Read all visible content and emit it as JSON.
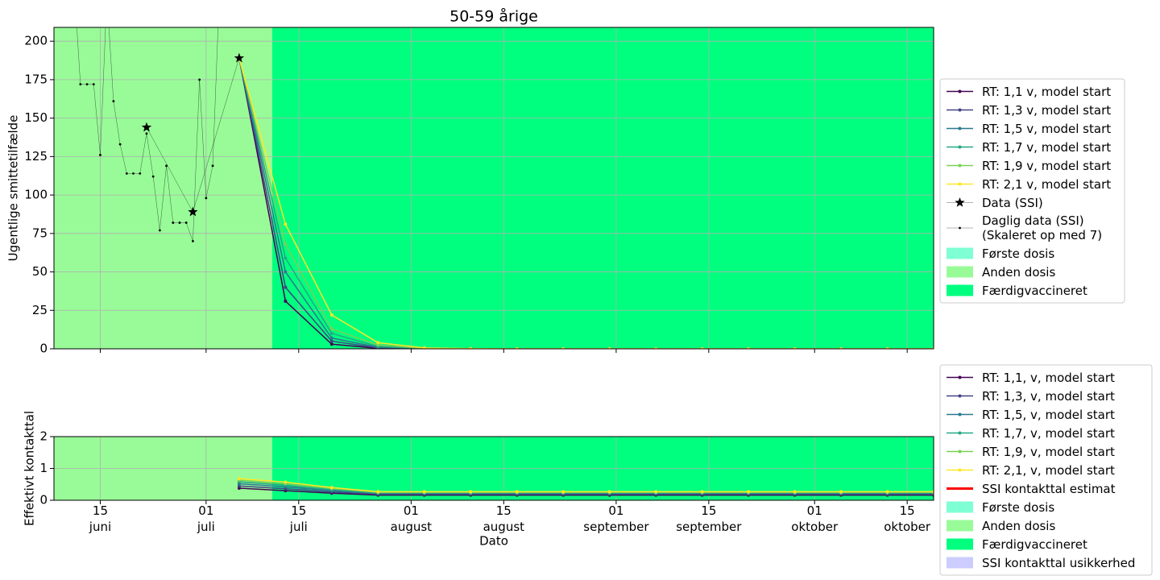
{
  "chart_data": [
    {
      "type": "line",
      "title": "50-59 årige",
      "ylabel": "Ugentlige smittetilfælde",
      "xlim": [
        "06-08",
        "10-19"
      ],
      "ylim": [
        0,
        209
      ],
      "yticks": [
        0,
        25,
        50,
        75,
        100,
        125,
        150,
        175,
        200
      ],
      "xticks": [
        "06-15",
        "07-01",
        "07-15",
        "08-01",
        "08-15",
        "09-01",
        "09-15",
        "10-01",
        "10-15"
      ],
      "grid": true,
      "series": [
        {
          "name": "RT: 1,1 v, model start",
          "color": "#440154",
          "marker": "o",
          "linewidth": 1.5,
          "x": [
            "07-06",
            "07-13",
            "07-20",
            "07-27",
            "08-03",
            "08-10",
            "08-17",
            "08-24",
            "08-31",
            "09-07",
            "09-14",
            "09-21",
            "09-28",
            "10-05",
            "10-12",
            "10-19"
          ],
          "values": [
            189,
            31,
            3,
            0.3,
            0.03,
            0,
            0,
            0,
            0,
            0,
            0,
            0,
            0,
            0,
            0,
            0
          ]
        },
        {
          "name": "RT: 1,3 v, model start",
          "color": "#414487",
          "marker": "o",
          "linewidth": 1.5,
          "x": [
            "07-06",
            "07-13",
            "07-20",
            "07-27",
            "08-03",
            "08-10",
            "08-17",
            "08-24",
            "08-31",
            "09-07",
            "09-14",
            "09-21",
            "09-28",
            "10-05",
            "10-12",
            "10-19"
          ],
          "values": [
            189,
            40,
            5,
            0.6,
            0.1,
            0,
            0,
            0,
            0,
            0,
            0,
            0,
            0,
            0,
            0,
            0
          ]
        },
        {
          "name": "RT: 1,5 v, model start",
          "color": "#2a788e",
          "marker": "o",
          "linewidth": 1.5,
          "x": [
            "07-06",
            "07-13",
            "07-20",
            "07-27",
            "08-03",
            "08-10",
            "08-17",
            "08-24",
            "08-31",
            "09-07",
            "09-14",
            "09-21",
            "09-28",
            "10-05",
            "10-12",
            "10-19"
          ],
          "values": [
            189,
            50,
            7,
            1,
            0.1,
            0,
            0,
            0,
            0,
            0,
            0,
            0,
            0,
            0,
            0,
            0
          ]
        },
        {
          "name": "RT: 1,7 v, model start",
          "color": "#22a884",
          "marker": "o",
          "linewidth": 1.5,
          "x": [
            "07-06",
            "07-13",
            "07-20",
            "07-27",
            "08-03",
            "08-10",
            "08-17",
            "08-24",
            "08-31",
            "09-07",
            "09-14",
            "09-21",
            "09-28",
            "10-05",
            "10-12",
            "10-19"
          ],
          "values": [
            189,
            59,
            10,
            1.5,
            0.2,
            0,
            0,
            0,
            0,
            0,
            0,
            0,
            0,
            0,
            0,
            0
          ]
        },
        {
          "name": "RT: 1,9 v, model start",
          "color": "#7ad151",
          "marker": "o",
          "linewidth": 1.5,
          "x": [
            "07-06",
            "07-13",
            "07-20",
            "07-27",
            "08-03",
            "08-10",
            "08-17",
            "08-24",
            "08-31",
            "09-07",
            "09-14",
            "09-21",
            "09-28",
            "10-05",
            "10-12",
            "10-19"
          ],
          "values": [
            189,
            68,
            13,
            2.5,
            0.3,
            0,
            0,
            0,
            0,
            0,
            0,
            0,
            0,
            0,
            0,
            0
          ]
        },
        {
          "name": "RT: 2,1 v, model start",
          "color": "#fde725",
          "marker": "o",
          "linewidth": 1.5,
          "x": [
            "07-06",
            "07-13",
            "07-20",
            "07-27",
            "08-03",
            "08-10",
            "08-17",
            "08-24",
            "08-31",
            "09-07",
            "09-14",
            "09-21",
            "09-28",
            "10-05",
            "10-12",
            "10-19"
          ],
          "values": [
            189,
            81,
            22,
            4,
            0.6,
            0.1,
            0,
            0,
            0,
            0,
            0,
            0,
            0,
            0,
            0,
            0
          ]
        },
        {
          "name": "Data (SSI)",
          "color": "#000000",
          "marker": "*",
          "linewidth": 0.3,
          "x": [
            "06-22",
            "06-29",
            "07-06"
          ],
          "values": [
            144,
            89,
            189
          ]
        },
        {
          "name": "Daglig data (SSI)\n(Skaleret op med 7)",
          "color": "#000000",
          "marker": ".",
          "linewidth": 0.3,
          "x": [
            "06-11",
            "06-12",
            "06-13",
            "06-14",
            "06-15",
            "06-16",
            "06-17",
            "06-18",
            "06-19",
            "06-20",
            "06-21",
            "06-22",
            "06-23",
            "06-24",
            "06-25",
            "06-26",
            "06-27",
            "06-28",
            "06-29",
            "06-30",
            "07-01",
            "07-02",
            "07-03"
          ],
          "values": [
            240,
            172,
            172,
            172,
            126,
            230,
            161,
            133,
            114,
            114,
            114,
            140,
            112,
            77,
            119,
            82,
            82,
            82,
            70,
            175,
            98,
            119,
            230
          ]
        }
      ],
      "spans": [
        {
          "name": "Første dosis",
          "color": "#7fffd4"
        },
        {
          "name": "Anden dosis",
          "color": "#98fb98",
          "end": "07-11"
        },
        {
          "name": "Færdigvaccineret",
          "color": "#00ff7f",
          "start": "07-11"
        }
      ]
    },
    {
      "type": "line",
      "ylabel": "Effektivt kontakttal",
      "xlabel": "Dato",
      "xlim": [
        "06-08",
        "10-19"
      ],
      "ylim": [
        0,
        2
      ],
      "yticks": [
        0,
        1,
        2
      ],
      "xticks": [
        {
          "value": "06-15",
          "label": "15\njuni"
        },
        {
          "value": "07-01",
          "label": "01\njuli"
        },
        {
          "value": "07-15",
          "label": "15\njuli"
        },
        {
          "value": "08-01",
          "label": "01\naugust"
        },
        {
          "value": "08-15",
          "label": "15\naugust"
        },
        {
          "value": "09-01",
          "label": "01\nseptember"
        },
        {
          "value": "09-15",
          "label": "15\nseptember"
        },
        {
          "value": "10-01",
          "label": "01\noktober"
        },
        {
          "value": "10-15",
          "label": "15\noktober"
        }
      ],
      "grid": true,
      "series": [
        {
          "name": "RT: 1,1, v, model start",
          "color": "#440154",
          "marker": "o",
          "linewidth": 1.5,
          "x": [
            "07-06",
            "07-13",
            "07-20",
            "07-27",
            "08-03",
            "08-10",
            "08-17",
            "08-24",
            "08-31",
            "09-07",
            "09-14",
            "09-21",
            "09-28",
            "10-05",
            "10-12",
            "10-19"
          ],
          "values": [
            0.38,
            0.3,
            0.22,
            0.16,
            0.16,
            0.16,
            0.16,
            0.16,
            0.16,
            0.16,
            0.16,
            0.16,
            0.16,
            0.16,
            0.16,
            0.16
          ]
        },
        {
          "name": "RT: 1,3, v, model start",
          "color": "#414487",
          "marker": "o",
          "linewidth": 1.5,
          "x": [
            "07-06",
            "07-13",
            "07-20",
            "07-27",
            "08-03",
            "08-10",
            "08-17",
            "08-24",
            "08-31",
            "09-07",
            "09-14",
            "09-21",
            "09-28",
            "10-05",
            "10-12",
            "10-19"
          ],
          "values": [
            0.45,
            0.36,
            0.26,
            0.19,
            0.19,
            0.19,
            0.19,
            0.19,
            0.19,
            0.19,
            0.19,
            0.19,
            0.19,
            0.19,
            0.19,
            0.19
          ]
        },
        {
          "name": "RT: 1,5, v, model start",
          "color": "#2a788e",
          "marker": "o",
          "linewidth": 1.5,
          "x": [
            "07-06",
            "07-13",
            "07-20",
            "07-27",
            "08-03",
            "08-10",
            "08-17",
            "08-24",
            "08-31",
            "09-07",
            "09-14",
            "09-21",
            "09-28",
            "10-05",
            "10-12",
            "10-19"
          ],
          "values": [
            0.52,
            0.42,
            0.3,
            0.21,
            0.21,
            0.21,
            0.21,
            0.21,
            0.21,
            0.21,
            0.21,
            0.21,
            0.21,
            0.21,
            0.21,
            0.21
          ]
        },
        {
          "name": "RT: 1,7, v, model start",
          "color": "#22a884",
          "marker": "o",
          "linewidth": 1.5,
          "x": [
            "07-06",
            "07-13",
            "07-20",
            "07-27",
            "08-03",
            "08-10",
            "08-17",
            "08-24",
            "08-31",
            "09-07",
            "09-14",
            "09-21",
            "09-28",
            "10-05",
            "10-12",
            "10-19"
          ],
          "values": [
            0.58,
            0.47,
            0.33,
            0.23,
            0.23,
            0.23,
            0.23,
            0.23,
            0.23,
            0.23,
            0.23,
            0.23,
            0.23,
            0.23,
            0.23,
            0.23
          ]
        },
        {
          "name": "RT: 1,9, v, model start",
          "color": "#7ad151",
          "marker": "o",
          "linewidth": 1.5,
          "x": [
            "07-06",
            "07-13",
            "07-20",
            "07-27",
            "08-03",
            "08-10",
            "08-17",
            "08-24",
            "08-31",
            "09-07",
            "09-14",
            "09-21",
            "09-28",
            "10-05",
            "10-12",
            "10-19"
          ],
          "values": [
            0.63,
            0.52,
            0.37,
            0.25,
            0.25,
            0.25,
            0.25,
            0.25,
            0.25,
            0.25,
            0.25,
            0.25,
            0.25,
            0.25,
            0.25,
            0.25
          ]
        },
        {
          "name": "RT: 2,1, v, model start",
          "color": "#fde725",
          "marker": "o",
          "linewidth": 1.5,
          "x": [
            "07-06",
            "07-13",
            "07-20",
            "07-27",
            "08-03",
            "08-10",
            "08-17",
            "08-24",
            "08-31",
            "09-07",
            "09-14",
            "09-21",
            "09-28",
            "10-05",
            "10-12",
            "10-19"
          ],
          "values": [
            0.68,
            0.57,
            0.4,
            0.27,
            0.27,
            0.27,
            0.27,
            0.27,
            0.27,
            0.27,
            0.27,
            0.27,
            0.27,
            0.27,
            0.27,
            0.27
          ]
        },
        {
          "name": "SSI kontakttal estimat",
          "color": "#ff0000",
          "marker": "none",
          "linewidth": 3,
          "x": [],
          "values": []
        }
      ],
      "spans": [
        {
          "name": "Første dosis",
          "color": "#7fffd4"
        },
        {
          "name": "Anden dosis",
          "color": "#98fb98",
          "end": "07-11"
        },
        {
          "name": "Færdigvaccineret",
          "color": "#00ff7f",
          "start": "07-11"
        },
        {
          "name": "SSI kontakttal usikkerhed",
          "color": "#ccccff"
        }
      ]
    }
  ]
}
